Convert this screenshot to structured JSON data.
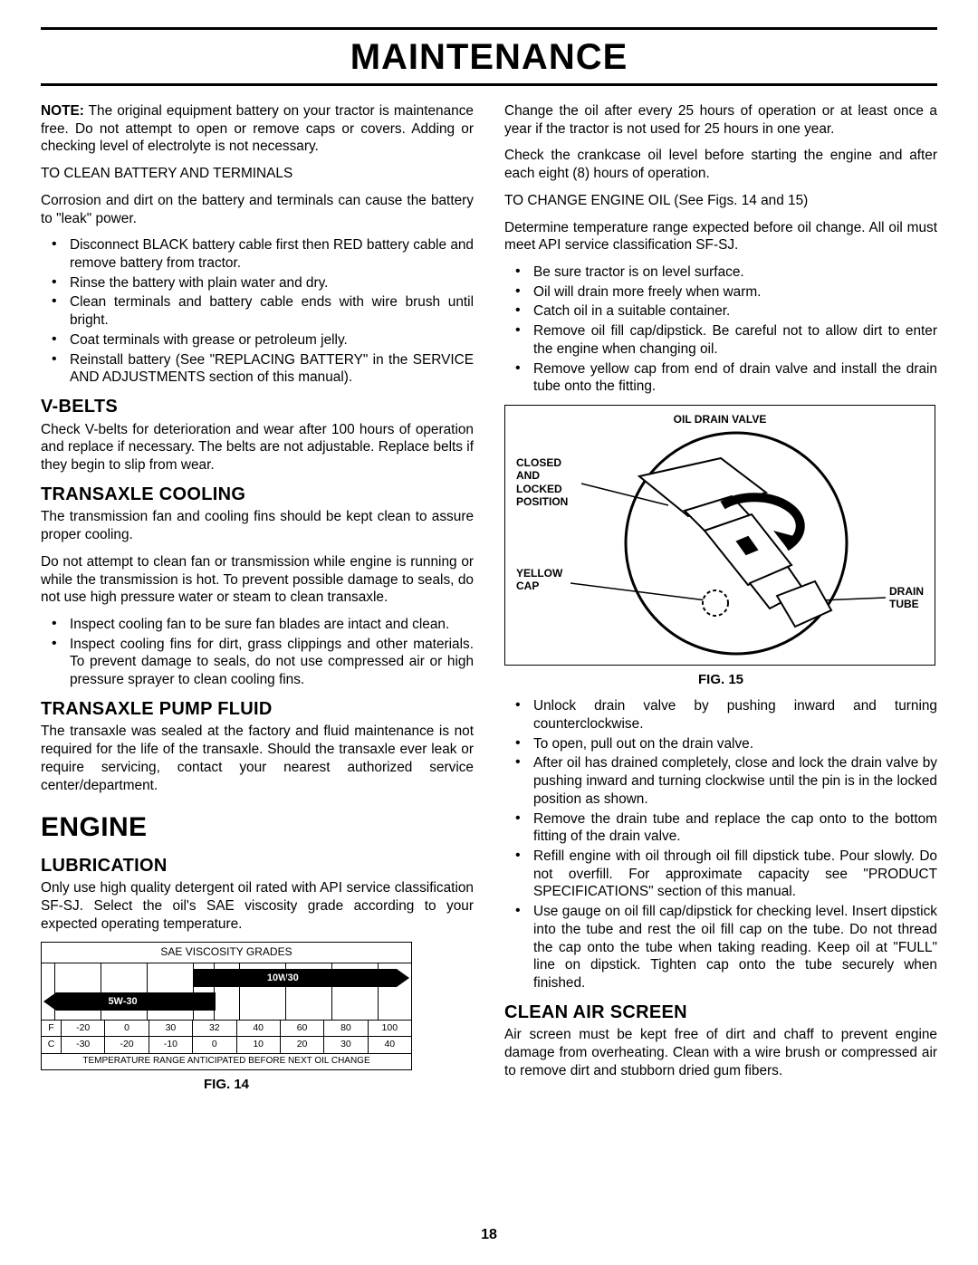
{
  "page_title": "MAINTENANCE",
  "page_number": "18",
  "left": {
    "note_label": "NOTE:",
    "note_body": " The original equipment battery on your tractor is maintenance free. Do not attempt to open or remove caps or covers. Adding or checking level of electrolyte is not necessary.",
    "clean_battery_h": "TO CLEAN BATTERY AND TERMINALS",
    "clean_battery_p": "Corrosion and dirt on the battery and terminals can cause the battery to \"leak\" power.",
    "battery_steps": [
      "Disconnect BLACK battery cable first  then RED  battery cable and remove battery from tractor.",
      "Rinse the battery with plain water and dry.",
      "Clean terminals and battery cable ends with wire brush until bright.",
      "Coat terminals with grease or petroleum jelly.",
      "Reinstall battery (See \"REPLACING BATTERY\" in the SERVICE AND ADJUSTMENTS section of this manual)."
    ],
    "vbelts_h": "V-BELTS",
    "vbelts_p": "Check V-belts for deterioration and wear after 100 hours of operation and replace if necessary. The belts are not adjustable. Replace belts if they begin to slip from wear.",
    "transcool_h": "TRANSAXLE COOLING",
    "transcool_p1": "The transmission fan and cooling fins should be kept clean to assure proper cooling.",
    "transcool_p2": "Do not attempt to clean fan or transmission while engine is running or while the transmission is hot. To prevent possible damage to seals, do not use high pressure water or steam to clean transaxle.",
    "transcool_steps": [
      "Inspect cooling fan to be sure fan blades are intact and clean.",
      "Inspect cooling fins for dirt, grass clippings and other materials.  To prevent damage to seals, do not use compressed air or high pressure sprayer to clean cooling fins."
    ],
    "transpump_h": "TRANSAXLE PUMP FLUID",
    "transpump_p": "The transaxle was sealed at the factory and fluid maintenance is not required for the life of the transaxle.  Should the transaxle ever leak or require servicing, contact your nearest authorized service center/department.",
    "engine_h": "ENGINE",
    "lub_h": "LUBRICATION",
    "lub_p": "Only use high quality detergent oil rated with API service classification SF-SJ.  Select the oil's SAE viscosity grade according to your expected operating temperature.",
    "fig14_caption": "FIG. 14"
  },
  "right": {
    "p1": "Change the oil after every 25 hours of operation or at least once a year if the tractor is not used for 25 hours in one year.",
    "p2": "Check the crankcase oil level before starting the engine and after each eight (8) hours of operation.",
    "change_h": "TO CHANGE ENGINE OIL (See Figs. 14 and 15)",
    "change_p": "Determine temperature range expected before oil change. All oil must meet API service classification SF-SJ.",
    "change_steps1": [
      "Be sure tractor is on level surface.",
      "Oil will drain more freely when warm.",
      "Catch oil in a suitable container.",
      "Remove oil fill cap/dipstick.  Be careful not to allow dirt to enter the engine when changing oil.",
      "Remove yellow cap from end of drain valve and install the drain tube onto the fitting."
    ],
    "fig15_caption": "FIG. 15",
    "fig15_labels": {
      "title": "OIL DRAIN VALVE",
      "closed": "CLOSED\nAND\nLOCKED\nPOSITION",
      "yellow": "YELLOW\nCAP",
      "drain": "DRAIN\nTUBE"
    },
    "change_steps2": [
      "Unlock drain valve by pushing inward and turning counterclockwise.",
      "To open, pull out on the drain valve.",
      "After oil has drained completely, close and lock the drain valve by pushing inward and turning clockwise until the pin is in the locked position as shown.",
      "Remove the drain tube and replace the cap onto to the bottom fitting of the drain valve.",
      "Refill engine with oil through oil fill dipstick tube.  Pour slowly.  Do not overfill.  For approximate capacity see \"PRODUCT SPECIFICATIONS\" section of this manual.",
      "Use gauge on oil fill cap/dipstick for checking level.  Insert dipstick into the tube and rest the oil fill cap on the tube.  Do not thread the cap onto the tube when taking reading.   Keep oil at \"FULL\" line on dipstick.  Tighten cap onto the tube securely when finished."
    ],
    "clean_h": "CLEAN AIR SCREEN",
    "clean_p": "Air screen must be kept free of dirt and chaff to prevent engine damage from overheating.  Clean with a wire brush or compressed air to remove dirt and stubborn dried gum fibers."
  },
  "sae_chart": {
    "title": "SAE VISCOSITY GRADES",
    "label_10w30": "10W30",
    "label_5w30": "5W-30",
    "f_row": {
      "label": "F",
      "ticks": [
        "-20",
        "0",
        "30",
        "32",
        "40",
        "60",
        "80",
        "100"
      ]
    },
    "c_row": {
      "label": "C",
      "ticks": [
        "-30",
        "-20",
        "-10",
        "0",
        "10",
        "20",
        "30",
        "40"
      ]
    },
    "footer": "TEMPERATURE RANGE ANTICIPATED BEFORE NEXT OIL CHANGE",
    "grid_x_pcts": [
      3.5,
      16,
      28.5,
      41,
      46.5,
      53.5,
      66,
      78.5,
      91,
      100
    ],
    "bar_10w30": {
      "left_pct": 41,
      "right_pct": 96
    },
    "bar_5w30": {
      "left_pct": 4,
      "right_pct": 47
    },
    "colors": {
      "bar": "#000000",
      "text": "#ffffff",
      "border": "#000000"
    }
  }
}
